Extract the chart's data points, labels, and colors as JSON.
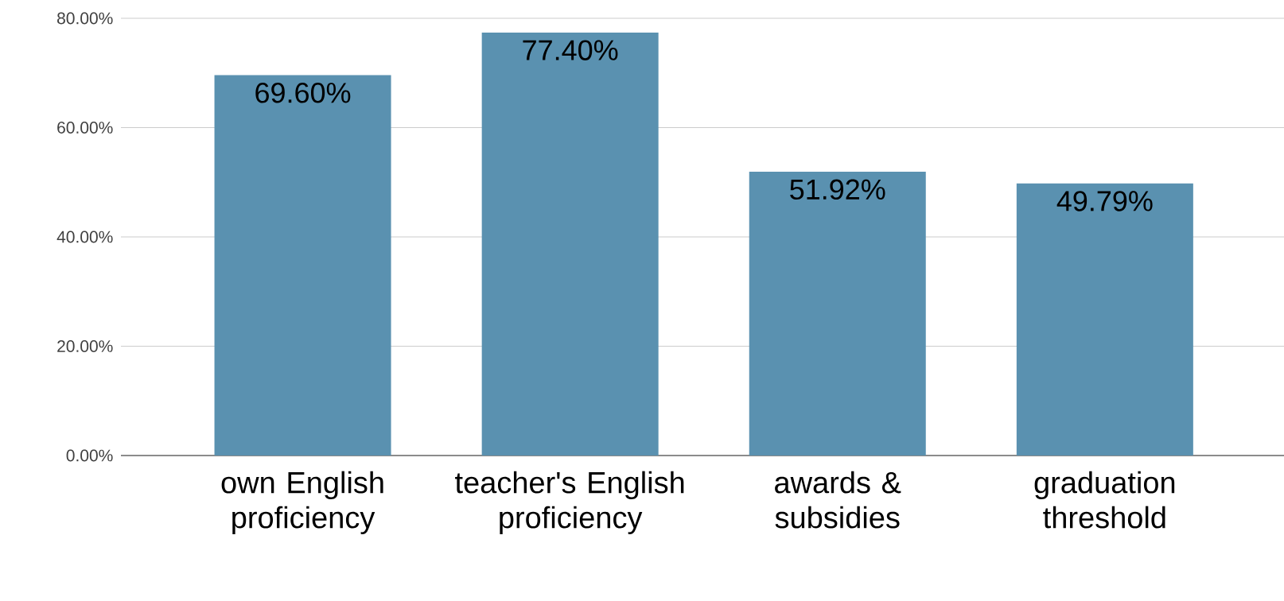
{
  "chart_data": {
    "type": "bar",
    "categories": [
      "own English proficiency",
      "teacher's English proficiency",
      "awards & subsidies",
      "graduation threshold"
    ],
    "values": [
      69.6,
      77.4,
      51.92,
      49.79
    ],
    "value_labels": [
      "69.60%",
      "77.40%",
      "51.92%",
      "49.79%"
    ],
    "color": "#5a91b0",
    "ylim": [
      0,
      80
    ],
    "yticks": [
      {
        "value": 0,
        "label": "0.00%"
      },
      {
        "value": 20,
        "label": "20.00%"
      },
      {
        "value": 40,
        "label": "40.00%"
      },
      {
        "value": 60,
        "label": "60.00%"
      },
      {
        "value": 80,
        "label": "80.00%"
      }
    ],
    "grid": "y"
  }
}
